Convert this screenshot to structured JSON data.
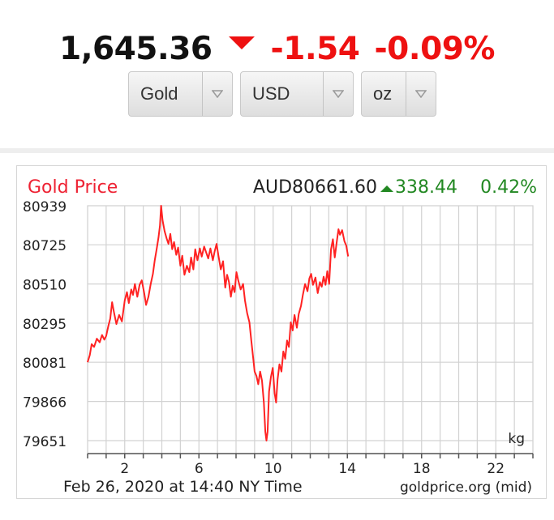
{
  "header": {
    "price": "1,645.36",
    "direction_icon": "down-triangle-icon",
    "change": "-1.54",
    "change_pct": "-0.09%",
    "change_color": "#ee1111"
  },
  "selectors": {
    "metal": "Gold",
    "currency": "USD",
    "unit": "oz",
    "dropdown_icon": "chevron-down-icon"
  },
  "chart_header": {
    "title": "Gold Price",
    "title_color": "#ee2233",
    "current_price": "AUD80661.60",
    "change": "338.44",
    "change_pct": "0.42%",
    "change_color": "#228822",
    "up_icon": "up-triangle-icon"
  },
  "chart_footer": {
    "timestamp": "Feb 26, 2020 at 14:40 NY Time",
    "source": "goldprice.org (mid)",
    "unit_label": "kg"
  },
  "chart_data": {
    "type": "line",
    "title": "Gold Price",
    "xlabel": "",
    "ylabel": "",
    "x_ticks": [
      "2",
      "6",
      "10",
      "14",
      "18",
      "22"
    ],
    "x_tick_values": [
      2,
      6,
      10,
      14,
      18,
      22
    ],
    "y_ticks": [
      "80939",
      "80725",
      "80510",
      "80295",
      "80081",
      "79866",
      "79651"
    ],
    "y_tick_values": [
      80939,
      80725,
      80510,
      80295,
      80081,
      79866,
      79651
    ],
    "xlim": [
      0,
      24
    ],
    "ylim": [
      79580,
      80939
    ],
    "grid": true,
    "line_color": "#ff2222",
    "series": [
      {
        "values": [
          [
            0.0,
            80081
          ],
          [
            0.12,
            80120
          ],
          [
            0.22,
            80180
          ],
          [
            0.35,
            80165
          ],
          [
            0.5,
            80210
          ],
          [
            0.65,
            80190
          ],
          [
            0.78,
            80230
          ],
          [
            0.9,
            80205
          ],
          [
            1.0,
            80225
          ],
          [
            1.12,
            80280
          ],
          [
            1.22,
            80320
          ],
          [
            1.32,
            80410
          ],
          [
            1.42,
            80355
          ],
          [
            1.55,
            80290
          ],
          [
            1.7,
            80340
          ],
          [
            1.85,
            80305
          ],
          [
            2.0,
            80420
          ],
          [
            2.12,
            80465
          ],
          [
            2.22,
            80405
          ],
          [
            2.35,
            80480
          ],
          [
            2.45,
            80450
          ],
          [
            2.55,
            80510
          ],
          [
            2.68,
            80440
          ],
          [
            2.8,
            80505
          ],
          [
            2.92,
            80530
          ],
          [
            3.05,
            80460
          ],
          [
            3.15,
            80395
          ],
          [
            3.28,
            80440
          ],
          [
            3.4,
            80510
          ],
          [
            3.52,
            80565
          ],
          [
            3.62,
            80640
          ],
          [
            3.72,
            80700
          ],
          [
            3.82,
            80765
          ],
          [
            3.9,
            80830
          ],
          [
            3.96,
            80939
          ],
          [
            4.04,
            80860
          ],
          [
            4.15,
            80800
          ],
          [
            4.26,
            80760
          ],
          [
            4.36,
            80730
          ],
          [
            4.46,
            80785
          ],
          [
            4.56,
            80700
          ],
          [
            4.66,
            80740
          ],
          [
            4.78,
            80670
          ],
          [
            4.88,
            80710
          ],
          [
            5.0,
            80610
          ],
          [
            5.1,
            80665
          ],
          [
            5.22,
            80560
          ],
          [
            5.35,
            80610
          ],
          [
            5.48,
            80575
          ],
          [
            5.58,
            80655
          ],
          [
            5.7,
            80590
          ],
          [
            5.8,
            80700
          ],
          [
            5.92,
            80640
          ],
          [
            6.05,
            80705
          ],
          [
            6.15,
            80660
          ],
          [
            6.28,
            80715
          ],
          [
            6.4,
            80680
          ],
          [
            6.5,
            80650
          ],
          [
            6.62,
            80705
          ],
          [
            6.75,
            80640
          ],
          [
            6.85,
            80690
          ],
          [
            6.95,
            80730
          ],
          [
            7.05,
            80665
          ],
          [
            7.18,
            80590
          ],
          [
            7.3,
            80635
          ],
          [
            7.42,
            80490
          ],
          [
            7.52,
            80560
          ],
          [
            7.62,
            80520
          ],
          [
            7.72,
            80440
          ],
          [
            7.82,
            80500
          ],
          [
            7.92,
            80465
          ],
          [
            8.02,
            80575
          ],
          [
            8.12,
            80530
          ],
          [
            8.25,
            80480
          ],
          [
            8.38,
            80510
          ],
          [
            8.48,
            80420
          ],
          [
            8.6,
            80350
          ],
          [
            8.72,
            80300
          ],
          [
            8.82,
            80200
          ],
          [
            8.92,
            80110
          ],
          [
            9.0,
            80030
          ],
          [
            9.1,
            80005
          ],
          [
            9.2,
            79960
          ],
          [
            9.3,
            80030
          ],
          [
            9.4,
            79980
          ],
          [
            9.5,
            79860
          ],
          [
            9.58,
            79700
          ],
          [
            9.64,
            79651
          ],
          [
            9.7,
            79700
          ],
          [
            9.78,
            79920
          ],
          [
            9.88,
            80000
          ],
          [
            9.98,
            80050
          ],
          [
            10.08,
            79910
          ],
          [
            10.16,
            79860
          ],
          [
            10.24,
            79985
          ],
          [
            10.34,
            80070
          ],
          [
            10.45,
            80030
          ],
          [
            10.55,
            80140
          ],
          [
            10.65,
            80100
          ],
          [
            10.75,
            80200
          ],
          [
            10.85,
            80165
          ],
          [
            10.95,
            80300
          ],
          [
            11.05,
            80255
          ],
          [
            11.15,
            80340
          ],
          [
            11.28,
            80270
          ],
          [
            11.38,
            80345
          ],
          [
            11.5,
            80390
          ],
          [
            11.6,
            80450
          ],
          [
            11.72,
            80510
          ],
          [
            11.85,
            80470
          ],
          [
            11.95,
            80540
          ],
          [
            12.05,
            80565
          ],
          [
            12.15,
            80505
          ],
          [
            12.28,
            80545
          ],
          [
            12.4,
            80460
          ],
          [
            12.52,
            80520
          ],
          [
            12.62,
            80495
          ],
          [
            12.72,
            80550
          ],
          [
            12.82,
            80505
          ],
          [
            12.92,
            80580
          ],
          [
            13.02,
            80510
          ],
          [
            13.12,
            80700
          ],
          [
            13.22,
            80755
          ],
          [
            13.32,
            80655
          ],
          [
            13.42,
            80735
          ],
          [
            13.52,
            80810
          ],
          [
            13.6,
            80780
          ],
          [
            13.72,
            80805
          ],
          [
            13.84,
            80745
          ],
          [
            13.94,
            80720
          ],
          [
            14.04,
            80661
          ]
        ]
      }
    ]
  }
}
